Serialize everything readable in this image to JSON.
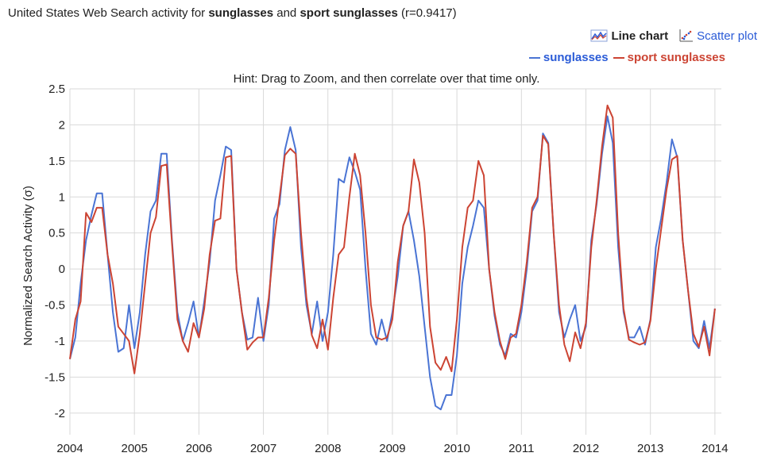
{
  "header": {
    "title_prefix": "United States Web Search activity for ",
    "term1": "sunglasses",
    "and_text": " and ",
    "term2": "sport sunglasses",
    "r_text": " (r=0.9417)"
  },
  "controls": {
    "line_chart_label": "Line chart",
    "scatter_plot_label": "Scatter plot"
  },
  "hint": "Hint: Drag to Zoom, and then correlate over that time only.",
  "colors": {
    "sunglasses": "#4a74d4",
    "sport_sunglasses": "#cc4433",
    "grid": "#d9d9d9",
    "link": "#2a5bd7"
  },
  "chart_data": {
    "type": "line",
    "ylabel": "Normalized Search Activity (σ)",
    "xlabel": "",
    "xlim": [
      2004,
      2014.1
    ],
    "ylim": [
      -2.3,
      2.5
    ],
    "x_ticks": [
      "2004",
      "2005",
      "2006",
      "2007",
      "2008",
      "2009",
      "2010",
      "2011",
      "2012",
      "2013",
      "2014"
    ],
    "y_ticks": [
      "2.5",
      "2",
      "1.5",
      "1",
      "0.5",
      "0",
      "-0.5",
      "-1",
      "-1.5",
      "-2"
    ],
    "legend_position": "top-right",
    "x_start": 2004.0,
    "x_step_months": 1,
    "series": [
      {
        "name": "sunglasses",
        "color": "#4a74d4",
        "values": [
          -1.25,
          -0.95,
          -0.2,
          0.4,
          0.75,
          1.05,
          1.05,
          0.2,
          -0.6,
          -1.15,
          -1.1,
          -0.5,
          -1.1,
          -0.6,
          0.2,
          0.8,
          0.95,
          1.6,
          1.6,
          0.4,
          -0.6,
          -1.0,
          -0.75,
          -0.45,
          -0.95,
          -0.45,
          0.1,
          0.95,
          1.3,
          1.7,
          1.65,
          0.0,
          -0.6,
          -0.98,
          -0.95,
          -0.4,
          -1.0,
          -0.5,
          0.7,
          0.9,
          1.65,
          1.97,
          1.65,
          0.3,
          -0.5,
          -0.9,
          -0.45,
          -1.0,
          -0.6,
          0.2,
          1.25,
          1.2,
          1.55,
          1.35,
          1.1,
          0.0,
          -0.9,
          -1.05,
          -0.7,
          -1.0,
          -0.6,
          -0.1,
          0.6,
          0.8,
          0.4,
          -0.1,
          -0.8,
          -1.5,
          -1.9,
          -1.95,
          -1.75,
          -1.75,
          -1.2,
          -0.2,
          0.3,
          0.6,
          0.95,
          0.85,
          0.0,
          -0.65,
          -1.05,
          -1.2,
          -0.9,
          -0.95,
          -0.6,
          0.0,
          0.8,
          0.95,
          1.88,
          1.75,
          0.5,
          -0.6,
          -0.95,
          -0.7,
          -0.5,
          -1.0,
          -0.8,
          0.4,
          0.9,
          1.6,
          2.12,
          1.75,
          0.3,
          -0.6,
          -0.95,
          -0.95,
          -0.8,
          -1.05,
          -0.7,
          0.3,
          0.7,
          1.2,
          1.8,
          1.55,
          0.4,
          -0.3,
          -1.0,
          -1.1,
          -0.72,
          -1.1,
          -0.55
        ]
      },
      {
        "name": "sport sunglasses",
        "color": "#cc4433",
        "values": [
          -1.25,
          -0.7,
          -0.45,
          0.78,
          0.65,
          0.85,
          0.85,
          0.2,
          -0.2,
          -0.8,
          -0.9,
          -1.0,
          -1.45,
          -0.9,
          -0.2,
          0.5,
          0.72,
          1.43,
          1.45,
          0.35,
          -0.7,
          -1.0,
          -1.15,
          -0.75,
          -0.95,
          -0.55,
          0.2,
          0.67,
          0.7,
          1.55,
          1.57,
          0.0,
          -0.6,
          -1.12,
          -1.02,
          -0.95,
          -0.95,
          -0.4,
          0.4,
          1.0,
          1.58,
          1.67,
          1.6,
          0.5,
          -0.4,
          -0.92,
          -1.1,
          -0.7,
          -1.12,
          -0.4,
          0.2,
          0.3,
          1.0,
          1.6,
          1.3,
          0.5,
          -0.5,
          -0.95,
          -0.98,
          -0.95,
          -0.7,
          0.1,
          0.6,
          0.8,
          1.52,
          1.2,
          0.5,
          -0.8,
          -1.3,
          -1.4,
          -1.22,
          -1.42,
          -0.7,
          0.3,
          0.85,
          0.95,
          1.5,
          1.3,
          0.0,
          -0.6,
          -1.0,
          -1.25,
          -0.95,
          -0.9,
          -0.5,
          0.1,
          0.85,
          1.0,
          1.85,
          1.73,
          0.5,
          -0.5,
          -1.05,
          -1.28,
          -0.88,
          -1.1,
          -0.75,
          0.3,
          0.95,
          1.7,
          2.27,
          2.1,
          0.5,
          -0.55,
          -0.98,
          -1.02,
          -1.05,
          -1.02,
          -0.72,
          0.0,
          0.55,
          1.1,
          1.52,
          1.57,
          0.4,
          -0.3,
          -0.9,
          -1.08,
          -0.8,
          -1.2,
          -0.55
        ]
      }
    ]
  }
}
